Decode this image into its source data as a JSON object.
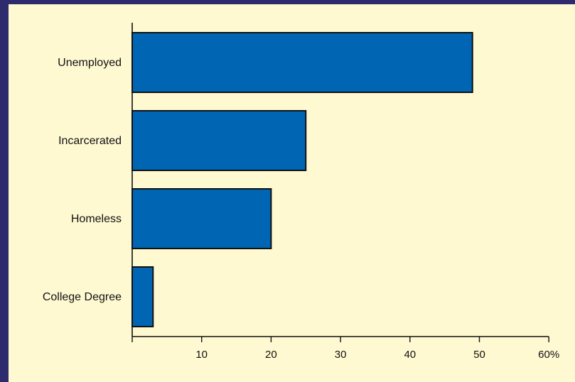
{
  "chart_data": {
    "type": "bar",
    "orientation": "horizontal",
    "categories": [
      "Unemployed",
      "Incarcerated",
      "Homeless",
      "College Degree"
    ],
    "values": [
      49,
      25,
      20,
      3
    ],
    "xlim": [
      0,
      60
    ],
    "xticks": [
      10,
      20,
      30,
      40,
      50,
      60
    ],
    "xtick_labels": [
      "10",
      "20",
      "30",
      "40",
      "50",
      "60%"
    ],
    "title": "",
    "xlabel": "",
    "ylabel": "",
    "grid": false,
    "colors": {
      "bar_fill": "#0066b3",
      "bar_stroke": "#111111",
      "plot_background": "#fff9d2",
      "outer_background": "#2d2a6e"
    }
  }
}
